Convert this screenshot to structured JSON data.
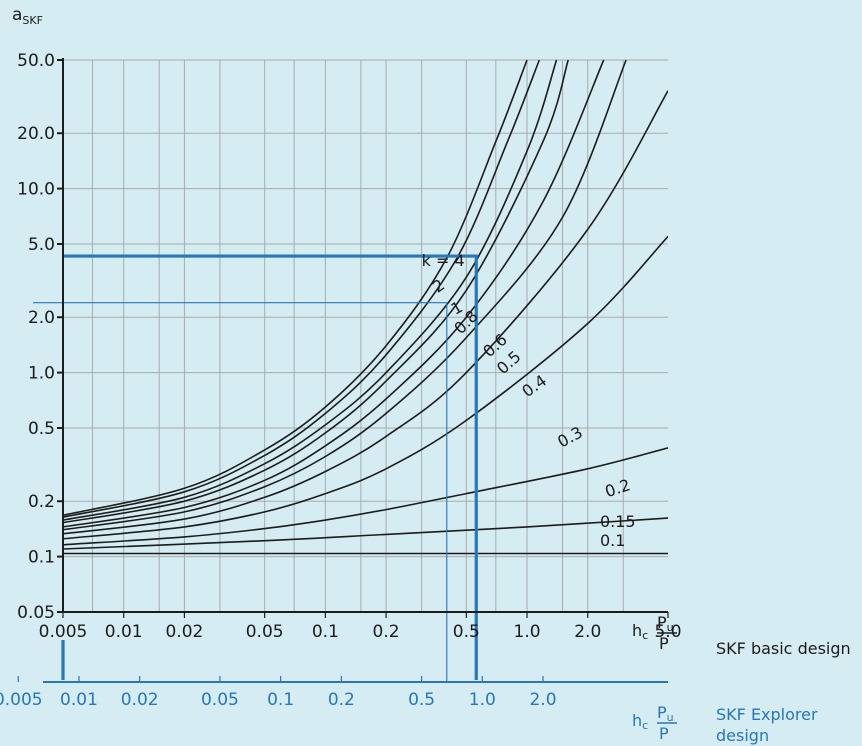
{
  "chart_data": {
    "type": "line",
    "title": "",
    "ylabel": "a_SKF",
    "ylabel_main": "a",
    "ylabel_sub": "SKF",
    "y_scale": "log",
    "x_scale": "log",
    "ylim": [
      0.05,
      50
    ],
    "xlim": [
      0.005,
      5
    ],
    "grid": true,
    "y_ticks": [
      {
        "value": 0.05,
        "label": "0.05"
      },
      {
        "value": 0.1,
        "label": "0.1"
      },
      {
        "value": 0.2,
        "label": "0.2"
      },
      {
        "value": 0.5,
        "label": "0.5"
      },
      {
        "value": 1,
        "label": "1.0"
      },
      {
        "value": 2,
        "label": "2.0"
      },
      {
        "value": 5,
        "label": "5.0"
      },
      {
        "value": 10,
        "label": "10.0"
      },
      {
        "value": 20,
        "label": "20.0"
      },
      {
        "value": 50,
        "label": "50.0"
      }
    ],
    "x_axis_basic": {
      "name": "SKF basic design",
      "label_main": "h",
      "label_sub": "c",
      "label_num": "P",
      "label_num_sub": "u",
      "label_den": "P",
      "ticks": [
        {
          "value": 0.005,
          "label": "0.005"
        },
        {
          "value": 0.01,
          "label": "0.01"
        },
        {
          "value": 0.02,
          "label": "0.02"
        },
        {
          "value": 0.05,
          "label": "0.05"
        },
        {
          "value": 0.1,
          "label": "0.1"
        },
        {
          "value": 0.2,
          "label": "0.2"
        },
        {
          "value": 0.5,
          "label": "0.5"
        },
        {
          "value": 1,
          "label": "1.0"
        },
        {
          "value": 2,
          "label": "2.0"
        },
        {
          "value": 5,
          "label": "5.0"
        }
      ]
    },
    "x_axis_explorer": {
      "name_line1": "SKF Explorer",
      "name_line2": "design",
      "label_main": "h",
      "label_sub": "c",
      "label_num": "P",
      "label_num_sub": "u",
      "label_den": "P",
      "ticks": [
        {
          "value": 0.003,
          "label": "0.005"
        },
        {
          "value": 0.006,
          "label": "0.01"
        },
        {
          "value": 0.012,
          "label": "0.02"
        },
        {
          "value": 0.03,
          "label": "0.05"
        },
        {
          "value": 0.06,
          "label": "0.1"
        },
        {
          "value": 0.12,
          "label": "0.2"
        },
        {
          "value": 0.3,
          "label": "0.5"
        },
        {
          "value": 0.6,
          "label": "1.0"
        },
        {
          "value": 1.2,
          "label": "2.0"
        }
      ]
    },
    "series": [
      {
        "name": "k = 4",
        "values": [
          [
            0.005,
            0.168
          ],
          [
            0.02,
            0.235
          ],
          [
            0.05,
            0.38
          ],
          [
            0.1,
            0.65
          ],
          [
            0.2,
            1.4
          ],
          [
            0.4,
            4.2
          ],
          [
            0.7,
            18
          ],
          [
            1.0,
            50
          ]
        ]
      },
      {
        "name": "2",
        "values": [
          [
            0.005,
            0.164
          ],
          [
            0.02,
            0.225
          ],
          [
            0.05,
            0.355
          ],
          [
            0.1,
            0.6
          ],
          [
            0.2,
            1.25
          ],
          [
            0.45,
            4.2
          ],
          [
            0.8,
            18
          ],
          [
            1.15,
            50
          ]
        ]
      },
      {
        "name": "1",
        "values": [
          [
            0.005,
            0.158
          ],
          [
            0.02,
            0.21
          ],
          [
            0.05,
            0.32
          ],
          [
            0.1,
            0.52
          ],
          [
            0.2,
            1.0
          ],
          [
            0.5,
            3.3
          ],
          [
            1.0,
            16
          ],
          [
            1.4,
            50
          ]
        ]
      },
      {
        "name": "0.8",
        "values": [
          [
            0.005,
            0.153
          ],
          [
            0.02,
            0.2
          ],
          [
            0.05,
            0.295
          ],
          [
            0.1,
            0.47
          ],
          [
            0.2,
            0.9
          ],
          [
            0.5,
            2.8
          ],
          [
            1.2,
            18
          ],
          [
            1.6,
            50
          ]
        ]
      },
      {
        "name": "0.6",
        "values": [
          [
            0.005,
            0.145
          ],
          [
            0.02,
            0.185
          ],
          [
            0.05,
            0.26
          ],
          [
            0.1,
            0.4
          ],
          [
            0.2,
            0.72
          ],
          [
            0.5,
            2.0
          ],
          [
            1.2,
            8.5
          ],
          [
            2.4,
            50
          ]
        ]
      },
      {
        "name": "0.5",
        "values": [
          [
            0.005,
            0.14
          ],
          [
            0.02,
            0.175
          ],
          [
            0.05,
            0.24
          ],
          [
            0.1,
            0.35
          ],
          [
            0.2,
            0.6
          ],
          [
            0.5,
            1.55
          ],
          [
            1.5,
            7
          ],
          [
            3.1,
            50
          ]
        ]
      },
      {
        "name": "0.4",
        "values": [
          [
            0.005,
            0.133
          ],
          [
            0.02,
            0.16
          ],
          [
            0.05,
            0.21
          ],
          [
            0.1,
            0.29
          ],
          [
            0.2,
            0.45
          ],
          [
            0.5,
            1.0
          ],
          [
            2.0,
            6
          ],
          [
            5.0,
            34
          ]
        ]
      },
      {
        "name": "0.3",
        "values": [
          [
            0.005,
            0.125
          ],
          [
            0.02,
            0.145
          ],
          [
            0.05,
            0.175
          ],
          [
            0.1,
            0.22
          ],
          [
            0.2,
            0.3
          ],
          [
            0.5,
            0.55
          ],
          [
            2.0,
            1.85
          ],
          [
            5.0,
            5.5
          ]
        ]
      },
      {
        "name": "0.2",
        "values": [
          [
            0.005,
            0.116
          ],
          [
            0.02,
            0.128
          ],
          [
            0.05,
            0.142
          ],
          [
            0.1,
            0.158
          ],
          [
            0.2,
            0.18
          ],
          [
            0.5,
            0.22
          ],
          [
            2.0,
            0.3
          ],
          [
            5.0,
            0.39
          ]
        ]
      },
      {
        "name": "0.15",
        "values": [
          [
            0.005,
            0.11
          ],
          [
            0.05,
            0.122
          ],
          [
            0.2,
            0.132
          ],
          [
            1.0,
            0.145
          ],
          [
            5.0,
            0.162
          ]
        ]
      },
      {
        "name": "0.1",
        "values": [
          [
            0.005,
            0.104
          ],
          [
            0.05,
            0.104
          ],
          [
            1.0,
            0.104
          ],
          [
            5.0,
            0.104
          ]
        ]
      }
    ],
    "curve_labels": [
      {
        "text": "k = 4",
        "x": 0.3,
        "y": 3.8,
        "angle": 0
      },
      {
        "text": "2",
        "x": 0.36,
        "y": 2.7,
        "angle": 35
      },
      {
        "text": "1",
        "x": 0.44,
        "y": 2.05,
        "angle": 30
      },
      {
        "text": "0.8",
        "x": 0.47,
        "y": 1.6,
        "angle": 45
      },
      {
        "text": "0.6",
        "x": 0.65,
        "y": 1.2,
        "angle": 42
      },
      {
        "text": "0.5",
        "x": 0.76,
        "y": 0.97,
        "angle": 42
      },
      {
        "text": "0.4",
        "x": 1.0,
        "y": 0.73,
        "angle": 35
      },
      {
        "text": "0.3",
        "x": 1.48,
        "y": 0.39,
        "angle": 28
      },
      {
        "text": "0.2",
        "x": 2.5,
        "y": 0.21,
        "angle": 18
      },
      {
        "text": "0.15",
        "x": 2.3,
        "y": 0.145,
        "angle": 0
      },
      {
        "text": "0.1",
        "x": 2.3,
        "y": 0.114,
        "angle": 0
      }
    ],
    "example_basic": {
      "x": 0.56,
      "y": 4.3
    },
    "example_explorer": {
      "x": 0.4,
      "y": 2.4
    },
    "colors": {
      "background": "#d4ecf2",
      "grid": "#a8adaf",
      "curve": "#1c1c1c",
      "explorer": "#2777b9",
      "text": "#1c1c1c"
    }
  }
}
